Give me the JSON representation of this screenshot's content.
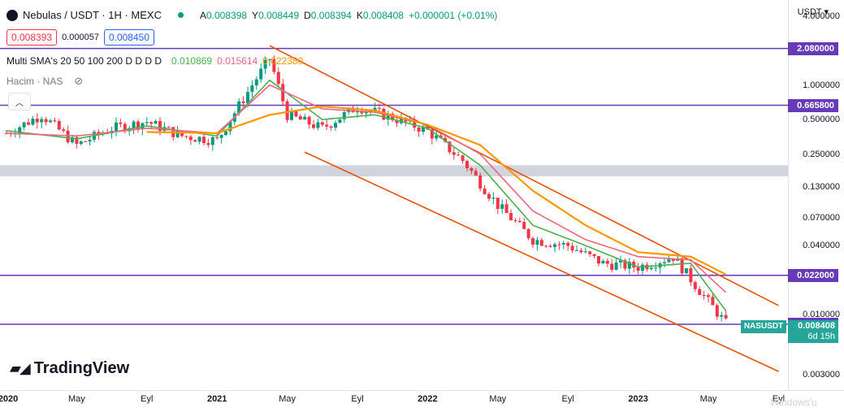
{
  "header": {
    "symbol_line": "Nebulas / USDT · 1H · MEXC",
    "ohlc": {
      "o_label": "A",
      "o": "0.008398",
      "h_label": "Y",
      "h": "0.008449",
      "l_label": "D",
      "l": "0.008394",
      "c_label": "K",
      "c": "0.008408",
      "chg": "+0.000001 (+0.01%)"
    },
    "bid": "0.008393",
    "spread": "0.000057",
    "ask": "0.008450",
    "sma_label": "Multi SMA's 20 50 100 200 D D D D",
    "sma_values": [
      "0.010869",
      "0.015614",
      "0.022380"
    ],
    "volume_label": "Hacim · NAS",
    "currency": "USDT"
  },
  "brand": {
    "logo_text": "TradingView"
  },
  "watermark_text": "Windows'u",
  "colors": {
    "up": "#089981",
    "down": "#f23645",
    "sma20": "#4caf50",
    "sma50": "#f06680",
    "sma100": "#ff9800",
    "channel": "#e65100",
    "level": "#673ab7",
    "zone": "#d1d4dc"
  },
  "chart_data": {
    "type": "candlestick",
    "y_scale": "log",
    "ylim": [
      0.0022,
      5.5
    ],
    "price_ticks": [
      "4.000000",
      "1.000000",
      "0.500000",
      "0.250000",
      "0.130000",
      "0.070000",
      "0.040000",
      "0.010000",
      "0.003000"
    ],
    "price_tick_values": [
      4.0,
      1.0,
      0.5,
      0.25,
      0.13,
      0.07,
      0.04,
      0.01,
      0.003
    ],
    "time_ticks": [
      "2020",
      "May",
      "Eyl",
      "2021",
      "May",
      "Eyl",
      "2022",
      "May",
      "Eyl",
      "2023",
      "May",
      "Eyl"
    ],
    "time_tick_values": [
      "2020-01",
      "2020-05",
      "2020-09",
      "2021-01",
      "2021-05",
      "2021-09",
      "2022-01",
      "2022-05",
      "2022-09",
      "2023-01",
      "2023-05",
      "2023-09"
    ],
    "horizontal_levels": [
      {
        "price": 2.08,
        "label": "2.080000"
      },
      {
        "price": 0.6658,
        "label": "0.665800"
      },
      {
        "price": 0.022,
        "label": "0.022000"
      },
      {
        "price": 0.00823,
        "label": "0.008232"
      }
    ],
    "support_zone": [
      0.16,
      0.2
    ],
    "channel": {
      "upper": [
        {
          "x": "2021-04",
          "y": 2.2
        },
        {
          "x": "2023-09",
          "y": 0.012
        }
      ],
      "lower": [
        {
          "x": "2021-06",
          "y": 0.26
        },
        {
          "x": "2023-09",
          "y": 0.0032
        }
      ]
    },
    "last_price": {
      "symbol": "NASUSDT",
      "price": "0.008408",
      "countdown": "6d 15h"
    },
    "series": [
      {
        "name": "",
        "role": "close",
        "x": [
          "2020-01",
          "2020-03",
          "2020-05",
          "2020-07",
          "2020-09",
          "2020-11",
          "2021-01",
          "2021-03",
          "2021-04",
          "2021-05",
          "2021-07",
          "2021-09",
          "2021-11",
          "2022-01",
          "2022-03",
          "2022-05",
          "2022-07",
          "2022-09",
          "2022-11",
          "2023-01",
          "2023-03",
          "2023-05",
          "2023-06"
        ],
        "y": [
          0.38,
          0.55,
          0.3,
          0.42,
          0.48,
          0.36,
          0.33,
          1.0,
          1.7,
          0.55,
          0.42,
          0.65,
          0.52,
          0.4,
          0.22,
          0.09,
          0.045,
          0.04,
          0.028,
          0.026,
          0.032,
          0.013,
          0.0084
        ]
      },
      {
        "name": "",
        "role": "sma20",
        "x": [
          "2020-01",
          "2020-05",
          "2020-09",
          "2021-01",
          "2021-04",
          "2021-07",
          "2021-10",
          "2022-01",
          "2022-04",
          "2022-07",
          "2022-10",
          "2023-01",
          "2023-04",
          "2023-06"
        ],
        "y": [
          0.4,
          0.34,
          0.44,
          0.36,
          1.1,
          0.5,
          0.55,
          0.42,
          0.2,
          0.06,
          0.04,
          0.026,
          0.028,
          0.0108
        ]
      },
      {
        "name": "",
        "role": "sma50",
        "x": [
          "2020-01",
          "2020-05",
          "2020-09",
          "2021-01",
          "2021-04",
          "2021-07",
          "2021-10",
          "2022-01",
          "2022-04",
          "2022-07",
          "2022-10",
          "2023-01",
          "2023-04",
          "2023-06"
        ],
        "y": [
          0.38,
          0.36,
          0.42,
          0.38,
          1.0,
          0.62,
          0.58,
          0.45,
          0.25,
          0.08,
          0.045,
          0.032,
          0.03,
          0.0156
        ]
      },
      {
        "name": "",
        "role": "sma100",
        "x": [
          "2020-09",
          "2021-01",
          "2021-04",
          "2021-07",
          "2021-10",
          "2022-01",
          "2022-04",
          "2022-07",
          "2022-10",
          "2023-01",
          "2023-04",
          "2023-06"
        ],
        "y": [
          0.39,
          0.38,
          0.55,
          0.65,
          0.6,
          0.45,
          0.3,
          0.12,
          0.06,
          0.035,
          0.032,
          0.0224
        ]
      }
    ]
  }
}
